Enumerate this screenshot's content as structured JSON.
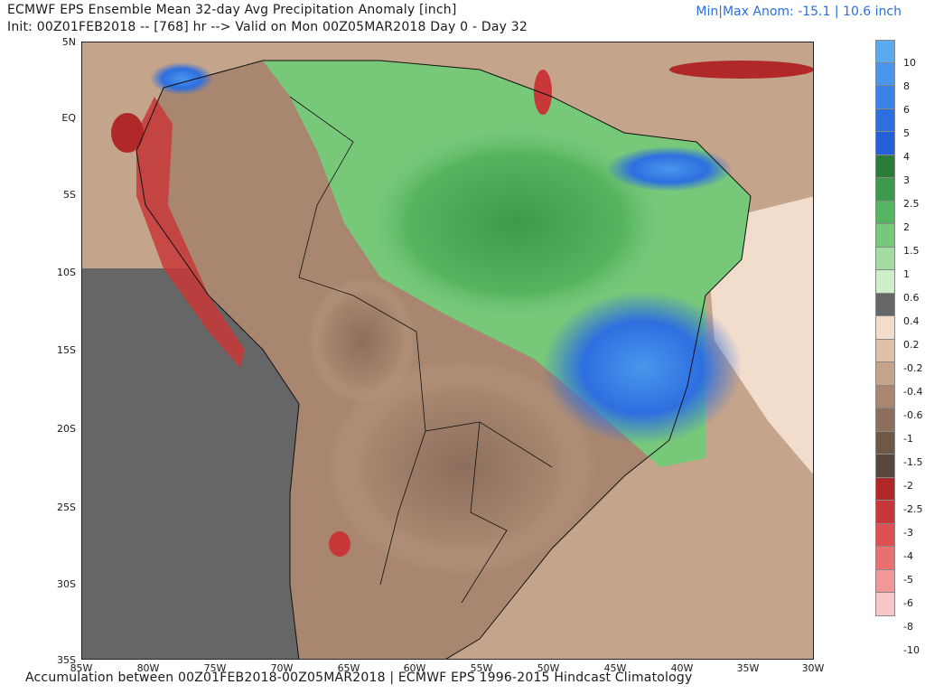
{
  "header": {
    "title": "ECMWF EPS Ensemble Mean 32-day Avg Precipitation Anomaly [inch]",
    "init_line": "Init: 00Z01FEB2018 -- [768] hr --> Valid on Mon 00Z05MAR2018  Day 0 - Day 32",
    "minmax": "Min|Max Anom: -15.1 | 10.6 inch"
  },
  "footer": {
    "text": "Accumulation between 00Z01FEB2018-00Z05MAR2018 | ECMWF EPS 1996-2015 Hindcast Climatology"
  },
  "axes": {
    "lat_labels": [
      "5N",
      "EQ",
      "5S",
      "10S",
      "15S",
      "20S",
      "25S",
      "30S",
      "35S"
    ],
    "lon_labels": [
      "85W",
      "80W",
      "75W",
      "70W",
      "65W",
      "60W",
      "55W",
      "50W",
      "45W",
      "40W",
      "35W",
      "30W"
    ]
  },
  "legend": {
    "colors": [
      "#5aaaf0",
      "#4a96ec",
      "#3a82e6",
      "#2e6fe0",
      "#2660d8",
      "#2a7a3a",
      "#3d9a4a",
      "#55b460",
      "#78c87a",
      "#a2dca0",
      "#cdeec8",
      "#666666",
      "#f2dccb",
      "#dcc0a8",
      "#c4a48a",
      "#a88670",
      "#8c6e5c",
      "#6e5848",
      "#56463c",
      "#b02828",
      "#c83838",
      "#dc5050",
      "#e87070",
      "#f09898",
      "#f8c8c8"
    ],
    "labels": [
      "10",
      "8",
      "6",
      "5",
      "4",
      "3",
      "2.5",
      "2",
      "1.5",
      "1",
      "0.6",
      "0.4",
      "0.2",
      "-0.2",
      "-0.4",
      "-0.6",
      "-1",
      "-1.5",
      "-2",
      "-2.5",
      "-3",
      "-4",
      "-5",
      "-6",
      "-8",
      "-10"
    ]
  }
}
